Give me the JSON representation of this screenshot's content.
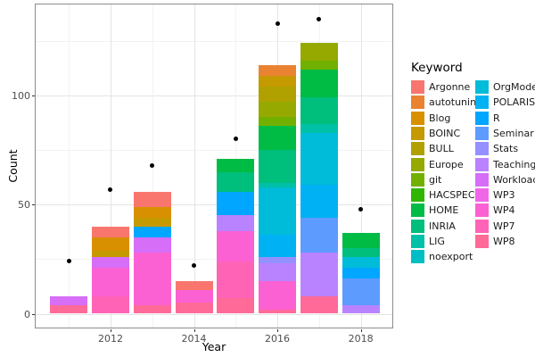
{
  "chart_data": {
    "type": "bar",
    "subtype": "stacked-bars-with-points",
    "title": "",
    "xlabel": "Year",
    "ylabel": "Count",
    "legend_title": "Keyword",
    "legend_position": "right",
    "grid": true,
    "ylim": [
      -7,
      142
    ],
    "y_ticks": [
      "0",
      "50",
      "100"
    ],
    "y_major": [
      0,
      50,
      100
    ],
    "y_minor": [
      25,
      75,
      125
    ],
    "x_ticks": [
      "2012",
      "2014",
      "2016",
      "2018"
    ],
    "x_major_years": [
      2012,
      2014,
      2016,
      2018
    ],
    "x_minor_years": [
      2011,
      2013,
      2015,
      2017
    ],
    "keywords": [
      {
        "label": "Argonne",
        "color": "#F8766D"
      },
      {
        "label": "autotuning",
        "color": "#EA8331"
      },
      {
        "label": "Blog",
        "color": "#D89000"
      },
      {
        "label": "BOINC",
        "color": "#C59900"
      },
      {
        "label": "BULL",
        "color": "#B0A100"
      },
      {
        "label": "Europe",
        "color": "#95A900"
      },
      {
        "label": "git",
        "color": "#72B000"
      },
      {
        "label": "HACSPECIS",
        "color": "#2FB600"
      },
      {
        "label": "HOME",
        "color": "#00BB44"
      },
      {
        "label": "INRIA",
        "color": "#00BE7C"
      },
      {
        "label": "LIG",
        "color": "#00C0A7"
      },
      {
        "label": "noexport",
        "color": "#00BFC4"
      },
      {
        "label": "OrgMode",
        "color": "#00BCD8"
      },
      {
        "label": "POLARIS",
        "color": "#00B2F3"
      },
      {
        "label": "R",
        "color": "#00A6FF"
      },
      {
        "label": "Seminar",
        "color": "#5E9BFF"
      },
      {
        "label": "Stats",
        "color": "#9590FF"
      },
      {
        "label": "Teaching",
        "color": "#B983FF"
      },
      {
        "label": "Workload",
        "color": "#D66EF8"
      },
      {
        "label": "WP3",
        "color": "#EF67E8"
      },
      {
        "label": "WP4",
        "color": "#FB61D3"
      },
      {
        "label": "WP7",
        "color": "#FF63B6"
      },
      {
        "label": "WP8",
        "color": "#FF6A98"
      }
    ],
    "bars": [
      {
        "year": 2011,
        "total": 8,
        "segments": [
          [
            "Workload",
            4
          ],
          [
            "WP8",
            4
          ]
        ]
      },
      {
        "year": 2012,
        "total": 40,
        "segments": [
          [
            "Argonne",
            5
          ],
          [
            "Blog",
            6
          ],
          [
            "BOINC",
            3
          ],
          [
            "Workload",
            5
          ],
          [
            "WP4",
            13
          ],
          [
            "WP7",
            8
          ]
        ]
      },
      {
        "year": 2013,
        "total": 56,
        "segments": [
          [
            "Argonne",
            7
          ],
          [
            "Blog",
            5
          ],
          [
            "BOINC",
            4
          ],
          [
            "R",
            5
          ],
          [
            "Workload",
            7
          ],
          [
            "WP4",
            24
          ],
          [
            "WP8",
            4
          ]
        ]
      },
      {
        "year": 2014,
        "total": 15,
        "segments": [
          [
            "Argonne",
            4
          ],
          [
            "WP4",
            6
          ],
          [
            "WP8",
            5
          ]
        ]
      },
      {
        "year": 2015,
        "total": 71,
        "segments": [
          [
            "HOME",
            6
          ],
          [
            "INRIA",
            9
          ],
          [
            "R",
            11
          ],
          [
            "Teaching",
            7
          ],
          [
            "WP4",
            14
          ],
          [
            "WP7",
            17
          ],
          [
            "WP8",
            7
          ]
        ]
      },
      {
        "year": 2016,
        "total": 114,
        "segments": [
          [
            "autotuning",
            5
          ],
          [
            "BOINC",
            5
          ],
          [
            "BULL",
            7
          ],
          [
            "Europe",
            7
          ],
          [
            "git",
            4
          ],
          [
            "HOME",
            11
          ],
          [
            "INRIA",
            15
          ],
          [
            "LIG",
            2
          ],
          [
            "OrgMode",
            22
          ],
          [
            "POLARIS",
            10
          ],
          [
            "Stats",
            3
          ],
          [
            "Teaching",
            8
          ],
          [
            "WP4",
            13
          ],
          [
            "WP8",
            2
          ]
        ]
      },
      {
        "year": 2017,
        "total": 124,
        "segments": [
          [
            "Europe",
            8
          ],
          [
            "git",
            4
          ],
          [
            "HOME",
            13
          ],
          [
            "INRIA",
            12
          ],
          [
            "LIG",
            4
          ],
          [
            "OrgMode",
            24
          ],
          [
            "POLARIS",
            15
          ],
          [
            "Seminar",
            16
          ],
          [
            "Teaching",
            20
          ],
          [
            "WP8",
            8
          ]
        ]
      },
      {
        "year": 2018,
        "total": 37,
        "segments": [
          [
            "HOME",
            7
          ],
          [
            "INRIA",
            4
          ],
          [
            "OrgMode",
            5
          ],
          [
            "R",
            5
          ],
          [
            "Seminar",
            12
          ],
          [
            "Teaching",
            4
          ]
        ]
      }
    ],
    "points": [
      {
        "year": 2011,
        "value": 24
      },
      {
        "year": 2012,
        "value": 57
      },
      {
        "year": 2013,
        "value": 68
      },
      {
        "year": 2014,
        "value": 22
      },
      {
        "year": 2015,
        "value": 80
      },
      {
        "year": 2016,
        "value": 133
      },
      {
        "year": 2017,
        "value": 135
      },
      {
        "year": 2018,
        "value": 48
      }
    ],
    "point_color": "#000000"
  }
}
